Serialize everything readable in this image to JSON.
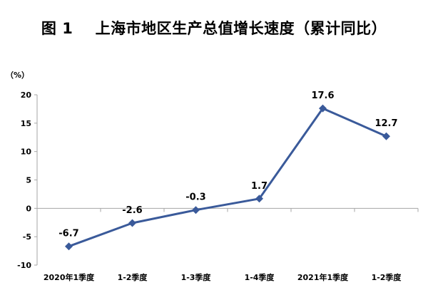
{
  "chart_data": {
    "type": "line",
    "title": "图 1    上海市地区生产总值增长速度（累计同比）",
    "ylabel": "（%）",
    "xlabel": "",
    "categories": [
      "2020年1季度",
      "1-2季度",
      "1-3季度",
      "1-4季度",
      "2021年1季度",
      "1-2季度"
    ],
    "series": [
      {
        "values": [
          -6.7,
          -2.6,
          -0.3,
          1.7,
          17.6,
          12.7
        ],
        "labels": [
          "-6.7",
          "-2.6",
          "-0.3",
          "1.7",
          "17.6",
          "12.7"
        ]
      }
    ],
    "ylim": [
      -10,
      20
    ],
    "yticks": [
      20,
      15,
      10,
      5,
      0,
      -5,
      -10
    ],
    "grid": false,
    "legend": "none",
    "marker": "diamond",
    "colors": {
      "line": "#3A5A9A",
      "axis": "#A6A6A6"
    }
  }
}
